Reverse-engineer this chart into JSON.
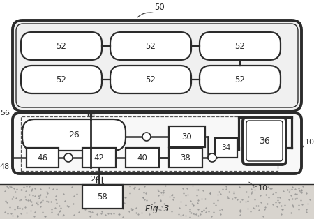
{
  "bg_color": "#ffffff",
  "line_color": "#2b2b2b",
  "ground_fill": "#d8d4ce",
  "label_fig": "Fig. 3"
}
